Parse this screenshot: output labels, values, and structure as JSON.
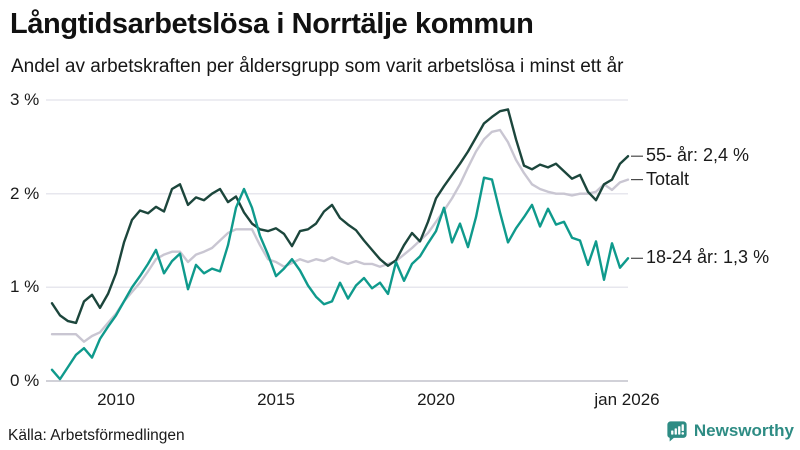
{
  "chart_data": {
    "type": "line",
    "title": "Långtidsarbetslösa i Norrtälje kommun",
    "subtitle": "Andel av arbetskraften per åldersgrupp som varit arbetslösa i minst ett år",
    "source": "Källa: Arbetsförmedlingen",
    "brand": "Newsworthy",
    "x_start": 2008.0,
    "x_end": 2026.0,
    "x_step_years": 0.25,
    "ylim": [
      0,
      3
    ],
    "grid": "horizontal",
    "legend_position": "right-end-labels",
    "yticks": [
      "3 %",
      "2 %",
      "1 %",
      "0 %"
    ],
    "ytick_values": [
      3,
      2,
      1,
      0
    ],
    "xticks": [
      "2010",
      "2015",
      "2020",
      "jan 2026"
    ],
    "xtick_values": [
      2010,
      2015,
      2020,
      2026
    ],
    "grid_color": "#e7e7ee",
    "axis_color": "#c2c2cc",
    "leader_color": "#4a4a4a",
    "series": [
      {
        "name": "55- år",
        "label": "55- år: 2,4 %",
        "last_value": 2.4,
        "color": "#1c463c",
        "z": 1,
        "values": [
          0.83,
          0.7,
          0.64,
          0.62,
          0.85,
          0.92,
          0.78,
          0.93,
          1.15,
          1.48,
          1.72,
          1.82,
          1.79,
          1.86,
          1.81,
          2.05,
          2.1,
          1.88,
          1.96,
          1.93,
          2.0,
          2.05,
          1.91,
          1.97,
          1.8,
          1.68,
          1.62,
          1.6,
          1.63,
          1.57,
          1.44,
          1.6,
          1.62,
          1.68,
          1.81,
          1.88,
          1.74,
          1.67,
          1.61,
          1.5,
          1.4,
          1.3,
          1.23,
          1.29,
          1.45,
          1.58,
          1.49,
          1.7,
          1.95,
          2.08,
          2.2,
          2.32,
          2.45,
          2.6,
          2.75,
          2.82,
          2.88,
          2.9,
          2.58,
          2.3,
          2.26,
          2.31,
          2.28,
          2.32,
          2.24,
          2.16,
          2.2,
          2.02,
          1.93,
          2.1,
          2.15,
          2.32,
          2.4
        ]
      },
      {
        "name": "Totalt",
        "label": "Totalt",
        "last_value": 2.15,
        "color": "#c9c6d2",
        "z": 0,
        "values": [
          0.5,
          0.5,
          0.5,
          0.5,
          0.42,
          0.48,
          0.52,
          0.62,
          0.72,
          0.85,
          0.95,
          1.05,
          1.17,
          1.3,
          1.35,
          1.38,
          1.38,
          1.27,
          1.35,
          1.38,
          1.42,
          1.5,
          1.58,
          1.62,
          1.62,
          1.62,
          1.45,
          1.3,
          1.27,
          1.22,
          1.26,
          1.3,
          1.27,
          1.3,
          1.28,
          1.32,
          1.28,
          1.25,
          1.28,
          1.25,
          1.25,
          1.22,
          1.25,
          1.28,
          1.35,
          1.42,
          1.5,
          1.58,
          1.7,
          1.82,
          1.95,
          2.1,
          2.28,
          2.45,
          2.58,
          2.66,
          2.68,
          2.55,
          2.36,
          2.22,
          2.1,
          2.05,
          2.02,
          2.0,
          2.0,
          1.98,
          2.0,
          2.0,
          2.02,
          2.1,
          2.04,
          2.12,
          2.15
        ]
      },
      {
        "name": "18-24 år",
        "label": "18-24 år: 1,3 %",
        "last_value": 1.3,
        "color": "#0f9a8c",
        "z": 2,
        "values": [
          0.12,
          0.02,
          0.15,
          0.28,
          0.35,
          0.25,
          0.45,
          0.58,
          0.7,
          0.85,
          1.0,
          1.12,
          1.25,
          1.4,
          1.15,
          1.28,
          1.36,
          0.98,
          1.24,
          1.15,
          1.2,
          1.17,
          1.45,
          1.85,
          2.05,
          1.85,
          1.55,
          1.35,
          1.12,
          1.2,
          1.3,
          1.18,
          1.02,
          0.9,
          0.82,
          0.85,
          1.05,
          0.88,
          1.02,
          1.1,
          0.99,
          1.05,
          0.93,
          1.27,
          1.07,
          1.25,
          1.33,
          1.47,
          1.6,
          1.85,
          1.48,
          1.68,
          1.43,
          1.75,
          2.17,
          2.15,
          1.8,
          1.48,
          1.63,
          1.75,
          1.88,
          1.65,
          1.84,
          1.67,
          1.7,
          1.53,
          1.5,
          1.24,
          1.49,
          1.08,
          1.47,
          1.21,
          1.31
        ]
      }
    ]
  }
}
